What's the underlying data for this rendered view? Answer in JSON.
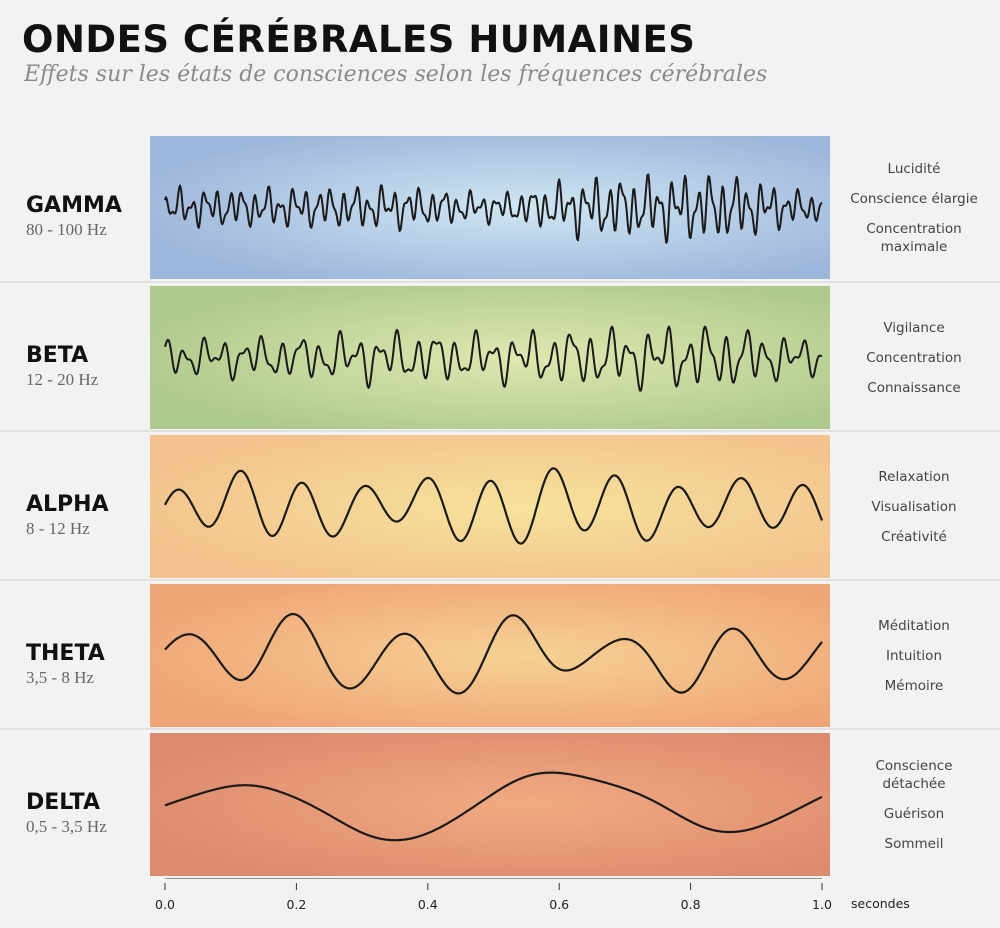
{
  "title": "ONDES CÉRÉBRALES HUMAINES",
  "subtitle": "Effets sur les états de consciences selon les fréquences  cérébrales",
  "bands": [
    {
      "name": "GAMMA",
      "freq": "80 - 100 Hz",
      "effects": [
        "Lucidité",
        "Conscience élargie",
        "Concentration\nmaximale"
      ],
      "colors": [
        "#9db6db",
        "#cfe6f2",
        "#9db6db"
      ],
      "wave": {
        "freq": 52,
        "amp": 0.72,
        "seed": 11
      }
    },
    {
      "name": "BETA",
      "freq": "12 - 20 Hz",
      "effects": [
        "Vigilance",
        "Concentration",
        "Connaissance"
      ],
      "colors": [
        "#aec98c",
        "#dfe8b0",
        "#aec98c"
      ],
      "wave": {
        "freq": 34,
        "amp": 0.7,
        "seed": 23
      }
    },
    {
      "name": "ALPHA",
      "freq": "8 - 12 Hz",
      "effects": [
        "Relaxation",
        "Visualisation",
        "Créativité"
      ],
      "colors": [
        "#f3c28e",
        "#f6e39c",
        "#f3c28e"
      ],
      "wave": {
        "freq": 10.5,
        "amp": 0.85,
        "seed": 5
      }
    },
    {
      "name": "THETA",
      "freq": "3,5 -  8 Hz",
      "effects": [
        "Méditation",
        "Intuition",
        "Mémoire"
      ],
      "colors": [
        "#f0a578",
        "#f5d294",
        "#f0a578"
      ],
      "wave": {
        "freq": 6,
        "amp": 0.85,
        "seed": 7
      }
    },
    {
      "name": "DELTA",
      "freq": "0,5 - 3,5 Hz",
      "effects": [
        "Conscience\ndétachée",
        "Guérison",
        "Sommeil"
      ],
      "colors": [
        "#dd8b6e",
        "#f2ab82",
        "#dd8b6e"
      ],
      "wave": {
        "freq": 2,
        "amp": 0.85,
        "seed": 3
      }
    }
  ],
  "axis": {
    "ticks": [
      "0.0",
      "0.2",
      "0.4",
      "0.6",
      "0.8",
      "1.0"
    ],
    "label": "secondes"
  },
  "line_color": "#1a1a1a"
}
